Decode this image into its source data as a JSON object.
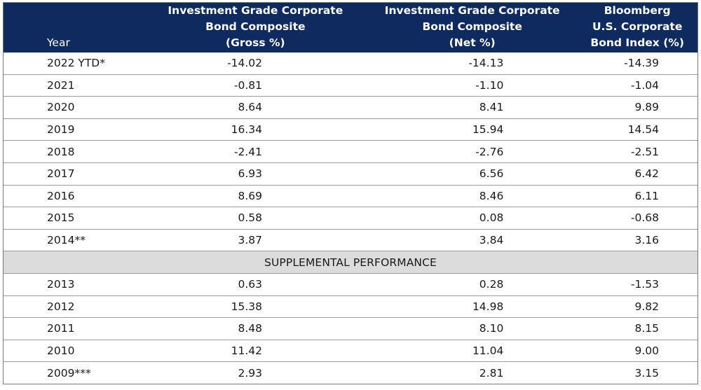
{
  "table": {
    "headers": {
      "year": "Year",
      "gross": [
        "Investment Grade Corporate",
        "Bond Composite",
        "(Gross %)"
      ],
      "net": [
        "Investment Grade Corporate",
        "Bond Composite",
        "(Net %)"
      ],
      "bench": [
        "Bloomberg",
        "U.S. Corporate",
        "Bond Index (%)"
      ]
    },
    "rows": [
      {
        "year": "2022 YTD*",
        "gross": "-14.02",
        "net": "-14.13",
        "bench": "-14.39"
      },
      {
        "year": "2021",
        "gross": "-0.81",
        "net": "-1.10",
        "bench": "-1.04"
      },
      {
        "year": "2020",
        "gross": "8.64",
        "net": "8.41",
        "bench": "9.89"
      },
      {
        "year": "2019",
        "gross": "16.34",
        "net": "15.94",
        "bench": "14.54"
      },
      {
        "year": "2018",
        "gross": "-2.41",
        "net": "-2.76",
        "bench": "-2.51"
      },
      {
        "year": "2017",
        "gross": "6.93",
        "net": "6.56",
        "bench": "6.42"
      },
      {
        "year": "2016",
        "gross": "8.69",
        "net": "8.46",
        "bench": "6.11"
      },
      {
        "year": "2015",
        "gross": "0.58",
        "net": "0.08",
        "bench": "-0.68"
      },
      {
        "year": "2014**",
        "gross": "3.87",
        "net": "3.84",
        "bench": "3.16"
      }
    ],
    "section_label": "SUPPLEMENTAL PERFORMANCE",
    "supplemental_rows": [
      {
        "year": "2013",
        "gross": "0.63",
        "net": "0.28",
        "bench": "-1.53"
      },
      {
        "year": "2012",
        "gross": "15.38",
        "net": "14.98",
        "bench": "9.82"
      },
      {
        "year": "2011",
        "gross": "8.48",
        "net": "8.10",
        "bench": "8.15"
      },
      {
        "year": "2010",
        "gross": "11.42",
        "net": "11.04",
        "bench": "9.00"
      },
      {
        "year": "2009***",
        "gross": "2.93",
        "net": "2.81",
        "bench": "3.15"
      }
    ]
  },
  "colors": {
    "header_bg": "#0e2a5f",
    "header_text": "#ffffff",
    "section_bg": "#dcdcdc",
    "row_divider": "#9a9a9a"
  }
}
